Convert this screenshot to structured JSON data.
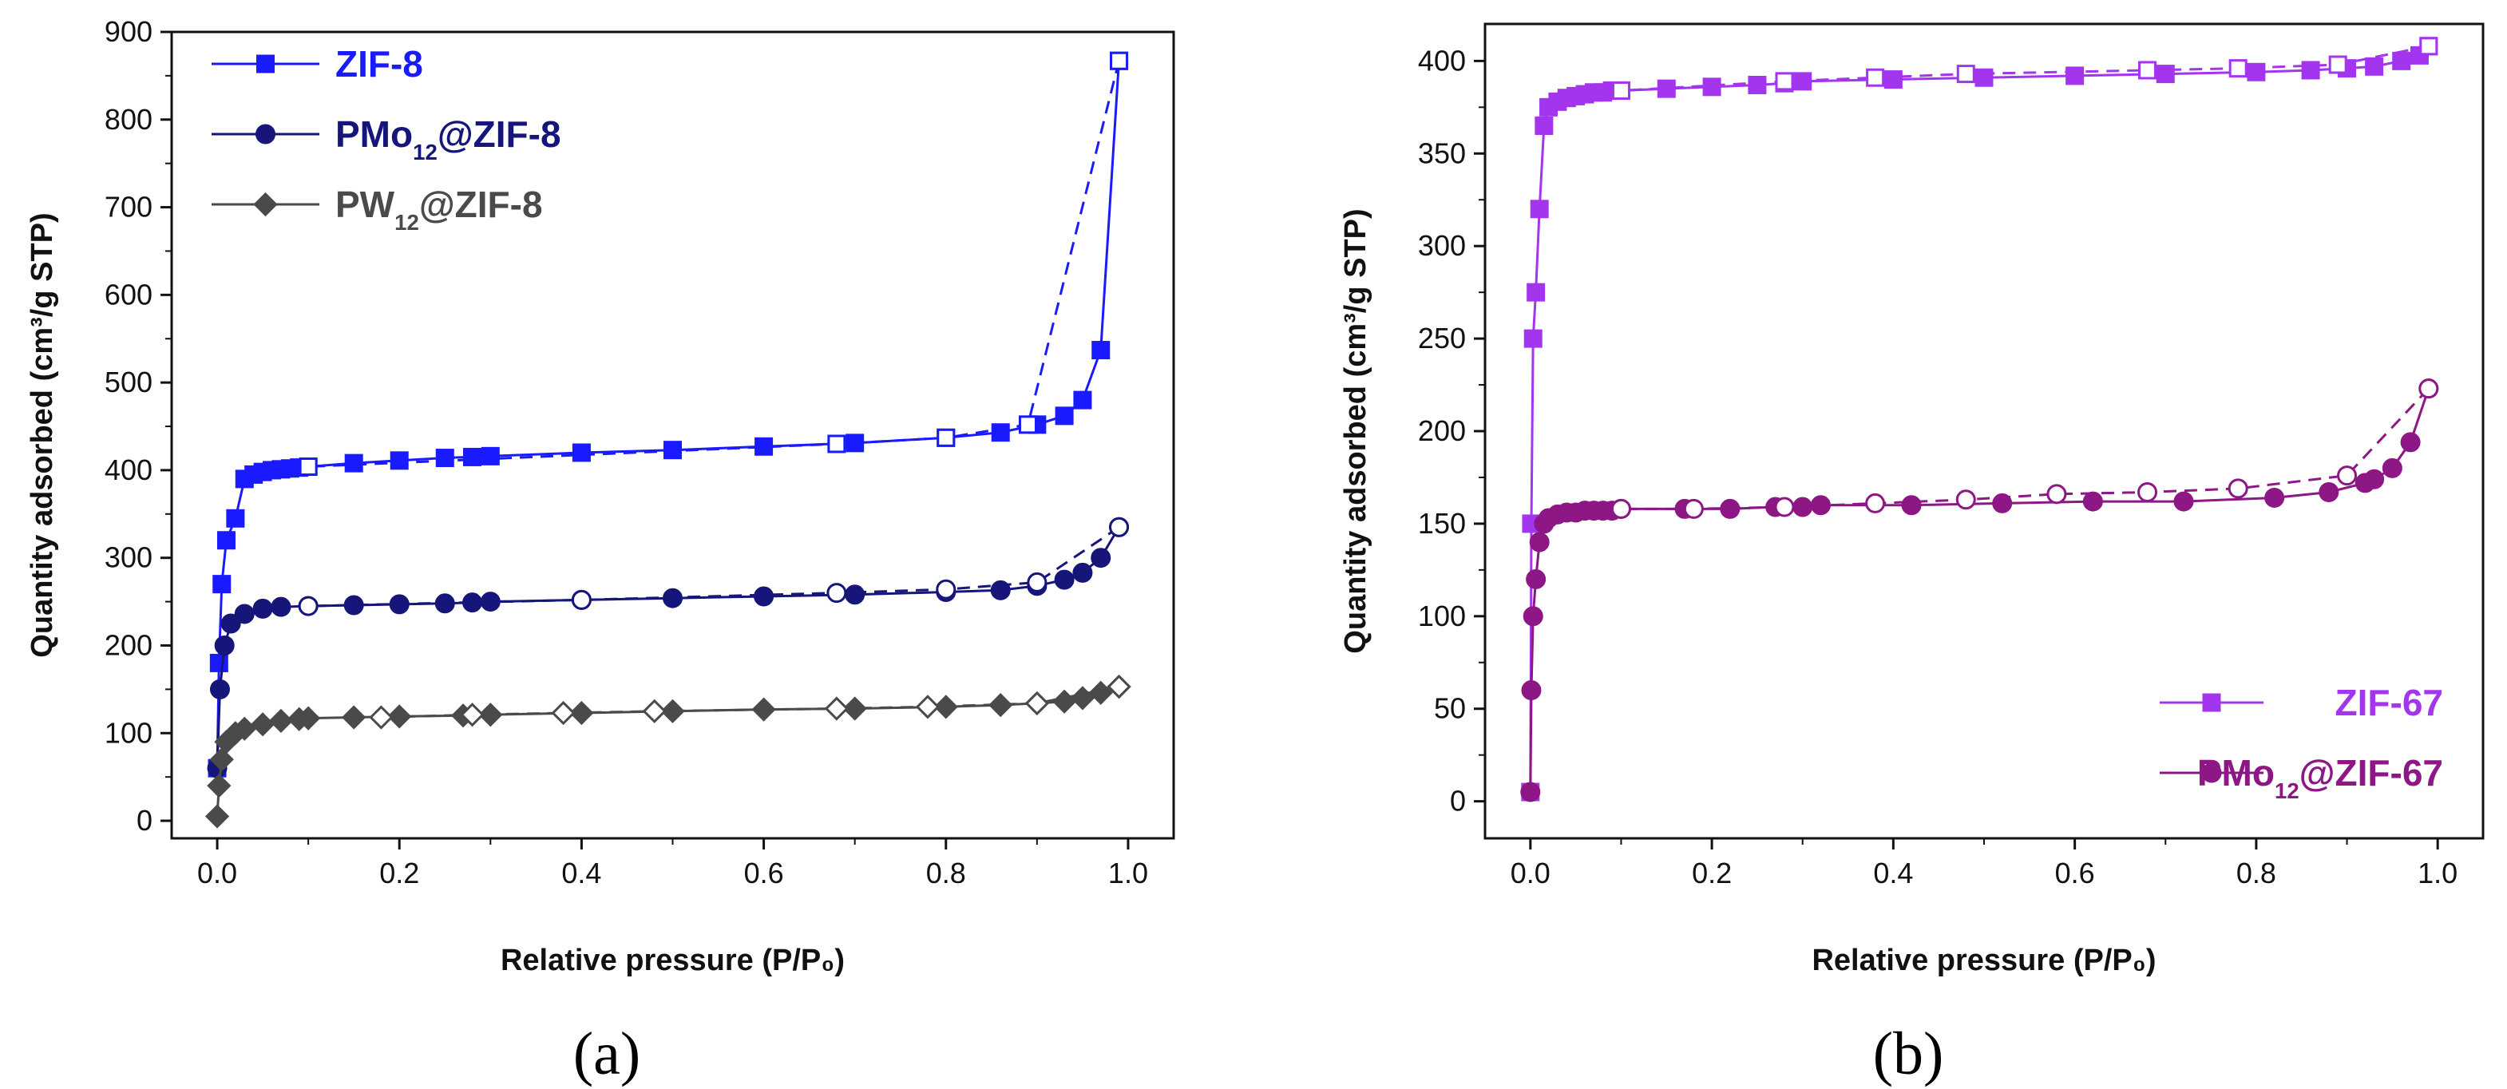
{
  "chart_data": [
    {
      "type": "line",
      "panel": "a",
      "caption": "(a)",
      "xlabel": "Relative pressure (P/P₀)",
      "ylabel": "Quantity adsorbed (cm³/g STP)",
      "xlim": [
        -0.05,
        1.05
      ],
      "ylim": [
        -20,
        900
      ],
      "xticks": [
        0.0,
        0.2,
        0.4,
        0.6,
        0.8,
        1.0
      ],
      "xtick_labels": [
        "0.0",
        "0.2",
        "0.4",
        "0.6",
        "0.8",
        "1.0"
      ],
      "yticks": [
        0,
        100,
        200,
        300,
        400,
        500,
        600,
        700,
        800,
        900
      ],
      "ytick_labels": [
        "0",
        "100",
        "200",
        "300",
        "400",
        "500",
        "600",
        "700",
        "800",
        "900"
      ],
      "legend_position": "top-left",
      "series": [
        {
          "name": "ZIF-8",
          "name_base": "ZIF-8",
          "name_sub": "",
          "name_rest": "",
          "color": "#1a1aff",
          "marker": "square",
          "adsorption": [
            [
              0.0,
              60
            ],
            [
              0.002,
              180
            ],
            [
              0.005,
              270
            ],
            [
              0.01,
              320
            ],
            [
              0.02,
              345
            ],
            [
              0.03,
              390
            ],
            [
              0.04,
              395
            ],
            [
              0.05,
              398
            ],
            [
              0.06,
              400
            ],
            [
              0.07,
              401
            ],
            [
              0.08,
              402
            ],
            [
              0.09,
              403
            ],
            [
              0.1,
              404
            ],
            [
              0.15,
              408
            ],
            [
              0.2,
              411
            ],
            [
              0.25,
              414
            ],
            [
              0.28,
              415
            ],
            [
              0.3,
              416
            ],
            [
              0.4,
              420
            ],
            [
              0.5,
              423
            ],
            [
              0.6,
              427
            ],
            [
              0.7,
              431
            ],
            [
              0.8,
              437
            ],
            [
              0.86,
              443
            ],
            [
              0.9,
              452
            ],
            [
              0.93,
              462
            ],
            [
              0.95,
              480
            ],
            [
              0.97,
              537
            ],
            [
              0.99,
              867
            ]
          ],
          "desorption": [
            [
              0.99,
              867
            ],
            [
              0.89,
              452
            ],
            [
              0.8,
              437
            ],
            [
              0.68,
              430
            ],
            [
              0.1,
              404
            ]
          ]
        },
        {
          "name": "PMo12@ZIF-8",
          "name_base": "PMo",
          "name_sub": "12",
          "name_rest": "@ZIF-8",
          "color": "#16167a",
          "marker": "circle",
          "adsorption": [
            [
              0.0,
              60
            ],
            [
              0.003,
              150
            ],
            [
              0.008,
              200
            ],
            [
              0.015,
              225
            ],
            [
              0.03,
              236
            ],
            [
              0.05,
              242
            ],
            [
              0.07,
              244
            ],
            [
              0.1,
              245
            ],
            [
              0.15,
              246
            ],
            [
              0.2,
              247
            ],
            [
              0.25,
              248
            ],
            [
              0.28,
              249
            ],
            [
              0.3,
              250
            ],
            [
              0.4,
              252
            ],
            [
              0.5,
              254
            ],
            [
              0.6,
              256
            ],
            [
              0.7,
              258
            ],
            [
              0.8,
              261
            ],
            [
              0.86,
              263
            ],
            [
              0.9,
              268
            ],
            [
              0.93,
              275
            ],
            [
              0.95,
              283
            ],
            [
              0.97,
              300
            ],
            [
              0.99,
              335
            ]
          ],
          "desorption": [
            [
              0.99,
              335
            ],
            [
              0.9,
              272
            ],
            [
              0.8,
              264
            ],
            [
              0.68,
              260
            ],
            [
              0.4,
              252
            ],
            [
              0.1,
              245
            ]
          ]
        },
        {
          "name": "PW12@ZIF-8",
          "name_base": "PW",
          "name_sub": "12",
          "name_rest": "@ZIF-8",
          "color": "#4a4a4a",
          "marker": "diamond",
          "adsorption": [
            [
              0.0,
              5
            ],
            [
              0.002,
              40
            ],
            [
              0.005,
              70
            ],
            [
              0.01,
              90
            ],
            [
              0.02,
              100
            ],
            [
              0.03,
              105
            ],
            [
              0.05,
              110
            ],
            [
              0.07,
              114
            ],
            [
              0.09,
              116
            ],
            [
              0.1,
              117
            ],
            [
              0.15,
              118
            ],
            [
              0.2,
              119
            ],
            [
              0.27,
              120
            ],
            [
              0.3,
              121
            ],
            [
              0.4,
              123
            ],
            [
              0.5,
              125
            ],
            [
              0.6,
              127
            ],
            [
              0.7,
              128
            ],
            [
              0.8,
              130
            ],
            [
              0.86,
              132
            ],
            [
              0.9,
              134
            ],
            [
              0.93,
              136
            ],
            [
              0.95,
              140
            ],
            [
              0.97,
              146
            ],
            [
              0.99,
              153
            ]
          ],
          "desorption": [
            [
              0.99,
              153
            ],
            [
              0.9,
              134
            ],
            [
              0.78,
              130
            ],
            [
              0.68,
              128
            ],
            [
              0.48,
              125
            ],
            [
              0.38,
              123
            ],
            [
              0.28,
              121
            ],
            [
              0.18,
              118
            ]
          ]
        }
      ]
    },
    {
      "type": "line",
      "panel": "b",
      "caption": "(b)",
      "xlabel": "Relative pressure (P/P₀)",
      "ylabel": "Quantity adsorbed (cm³/g STP)",
      "xlim": [
        -0.05,
        1.05
      ],
      "ylim": [
        -20,
        420
      ],
      "xticks": [
        0.0,
        0.2,
        0.4,
        0.6,
        0.8,
        1.0
      ],
      "xtick_labels": [
        "0.0",
        "0.2",
        "0.4",
        "0.6",
        "0.8",
        "1.0"
      ],
      "yticks": [
        0,
        50,
        100,
        150,
        200,
        250,
        300,
        350,
        400
      ],
      "ytick_labels": [
        "0",
        "50",
        "100",
        "150",
        "200",
        "250",
        "300",
        "350",
        "400"
      ],
      "legend_position": "bottom-right",
      "series": [
        {
          "name": "ZIF-67",
          "name_base": "ZIF-67",
          "name_sub": "",
          "name_rest": "",
          "color": "#a335ee",
          "marker": "square",
          "adsorption": [
            [
              0.0,
              5
            ],
            [
              0.001,
              150
            ],
            [
              0.003,
              250
            ],
            [
              0.006,
              275
            ],
            [
              0.01,
              320
            ],
            [
              0.015,
              365
            ],
            [
              0.02,
              375
            ],
            [
              0.03,
              378
            ],
            [
              0.04,
              380
            ],
            [
              0.05,
              381
            ],
            [
              0.06,
              382
            ],
            [
              0.07,
              383
            ],
            [
              0.08,
              383
            ],
            [
              0.09,
              384
            ],
            [
              0.1,
              384
            ],
            [
              0.15,
              385
            ],
            [
              0.2,
              386
            ],
            [
              0.25,
              387
            ],
            [
              0.28,
              388
            ],
            [
              0.3,
              389
            ],
            [
              0.4,
              390
            ],
            [
              0.5,
              391
            ],
            [
              0.6,
              392
            ],
            [
              0.7,
              393
            ],
            [
              0.8,
              394
            ],
            [
              0.86,
              395
            ],
            [
              0.9,
              396
            ],
            [
              0.93,
              397
            ],
            [
              0.96,
              400
            ],
            [
              0.98,
              403
            ],
            [
              0.99,
              408
            ]
          ],
          "desorption": [
            [
              0.99,
              408
            ],
            [
              0.89,
              398
            ],
            [
              0.78,
              396
            ],
            [
              0.68,
              395
            ],
            [
              0.48,
              393
            ],
            [
              0.38,
              391
            ],
            [
              0.28,
              389
            ],
            [
              0.1,
              384
            ]
          ]
        },
        {
          "name": "PMo12@ZIF-67",
          "name_base": "PMo",
          "name_sub": "12",
          "name_rest": "@ZIF-67",
          "color": "#8c1785",
          "marker": "circle",
          "adsorption": [
            [
              0.0,
              5
            ],
            [
              0.001,
              60
            ],
            [
              0.003,
              100
            ],
            [
              0.006,
              120
            ],
            [
              0.01,
              140
            ],
            [
              0.015,
              150
            ],
            [
              0.02,
              153
            ],
            [
              0.03,
              155
            ],
            [
              0.04,
              156
            ],
            [
              0.05,
              156
            ],
            [
              0.06,
              157
            ],
            [
              0.07,
              157
            ],
            [
              0.08,
              157
            ],
            [
              0.09,
              157
            ],
            [
              0.1,
              158
            ],
            [
              0.17,
              158
            ],
            [
              0.22,
              158
            ],
            [
              0.27,
              159
            ],
            [
              0.3,
              159
            ],
            [
              0.32,
              160
            ],
            [
              0.42,
              160
            ],
            [
              0.52,
              161
            ],
            [
              0.62,
              162
            ],
            [
              0.72,
              162
            ],
            [
              0.82,
              164
            ],
            [
              0.88,
              167
            ],
            [
              0.92,
              172
            ],
            [
              0.93,
              174
            ],
            [
              0.95,
              180
            ],
            [
              0.97,
              194
            ],
            [
              0.99,
              223
            ]
          ],
          "desorption": [
            [
              0.99,
              223
            ],
            [
              0.9,
              176
            ],
            [
              0.78,
              169
            ],
            [
              0.68,
              167
            ],
            [
              0.58,
              166
            ],
            [
              0.48,
              163
            ],
            [
              0.38,
              161
            ],
            [
              0.28,
              159
            ],
            [
              0.18,
              158
            ],
            [
              0.1,
              158
            ]
          ]
        }
      ]
    }
  ]
}
